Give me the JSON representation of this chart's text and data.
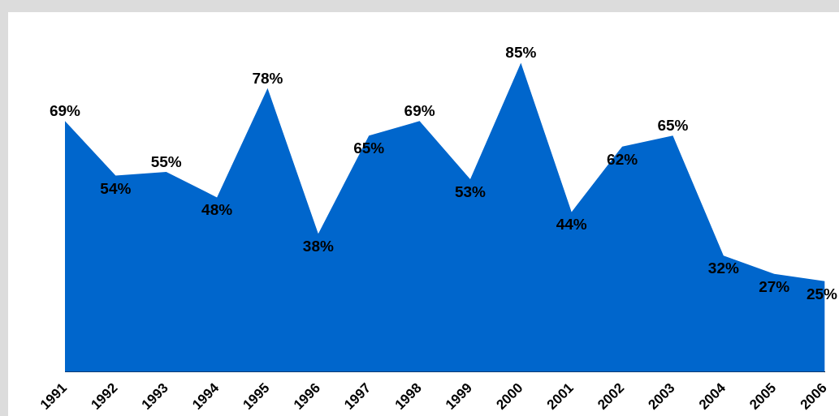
{
  "chart_data": {
    "type": "area",
    "categories": [
      "1991",
      "1992",
      "1993",
      "1994",
      "1995",
      "1996",
      "1997",
      "1998",
      "1999",
      "2000",
      "2001",
      "2002",
      "2003",
      "2004",
      "2005",
      "2006"
    ],
    "series": [
      {
        "color": "#0066cc",
        "values": [
          69,
          54,
          55,
          48,
          78,
          38,
          65,
          69,
          53,
          85,
          44,
          62,
          65,
          32,
          27,
          25
        ],
        "value_labels": [
          "69%",
          "54%",
          "55%",
          "48%",
          "78%",
          "38%",
          "65%",
          "69%",
          "53%",
          "85%",
          "44%",
          "62%",
          "65%",
          "32%",
          "27%",
          "25%"
        ]
      }
    ],
    "legend": false,
    "grid": false
  }
}
